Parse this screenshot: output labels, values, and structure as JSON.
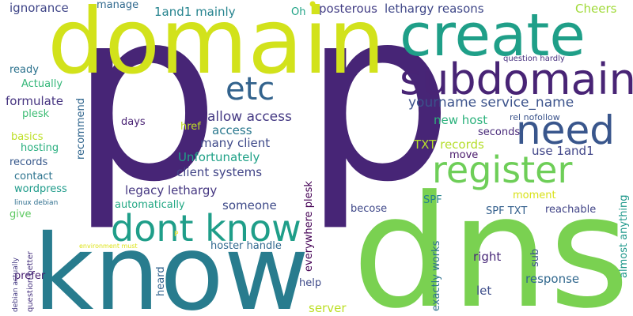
{
  "words": [
    {
      "key": "p1",
      "text": "p",
      "color": "#472576"
    },
    {
      "key": "p2",
      "text": "p",
      "color": "#472576"
    },
    {
      "key": "dns",
      "text": "dns",
      "color": "#7ad151"
    },
    {
      "key": "know",
      "text": "know",
      "color": "#287c8e"
    },
    {
      "key": "domain",
      "text": "domain",
      "color": "#d2e21b"
    },
    {
      "key": "create",
      "text": "create",
      "color": "#1f9f88"
    },
    {
      "key": "subdomain",
      "text": "subdomain",
      "color": "#482475"
    },
    {
      "key": "dont_know",
      "text": "dont know",
      "color": "#1f9e89"
    },
    {
      "key": "register",
      "text": "register",
      "color": "#6ece58"
    },
    {
      "key": "need",
      "text": "need",
      "color": "#39568c"
    },
    {
      "key": "etc",
      "text": "etc",
      "color": "#33638d"
    },
    {
      "key": "yourname",
      "text": "yourname service_name",
      "color": "#3b528b"
    },
    {
      "key": "allow_access",
      "text": "allow access",
      "color": "#443983"
    },
    {
      "key": "access",
      "text": "access",
      "color": "#2a788e"
    },
    {
      "key": "many_client",
      "text": "many client",
      "color": "#3e4989"
    },
    {
      "key": "unfortunately",
      "text": "Unfortunately",
      "color": "#1fa187"
    },
    {
      "key": "client_systems",
      "text": "client systems",
      "color": "#414487"
    },
    {
      "key": "legacy_lethargy",
      "text": "legacy lethargy",
      "color": "#453781"
    },
    {
      "key": "automatically",
      "text": "automatically",
      "color": "#22a884"
    },
    {
      "key": "someone",
      "text": "someone",
      "color": "#3e4a89"
    },
    {
      "key": "ignorance",
      "text": "ignorance",
      "color": "#404688"
    },
    {
      "key": "manage",
      "text": "manage",
      "color": "#30698e"
    },
    {
      "key": "1and1_mainly",
      "text": "1and1 mainly",
      "color": "#25838e"
    },
    {
      "key": "oh",
      "text": "Oh",
      "color": "#20a386"
    },
    {
      "key": "posterous",
      "text": "posterous",
      "color": "#433e85"
    },
    {
      "key": "lethargy_reasons",
      "text": "lethargy reasons",
      "color": "#3f4788"
    },
    {
      "key": "cheers",
      "text": "Cheers",
      "color": "#a0da39"
    },
    {
      "key": "question_hardly",
      "text": "question hardly",
      "color": "#46307e"
    },
    {
      "key": "ready",
      "text": "ready",
      "color": "#2c728e"
    },
    {
      "key": "actually",
      "text": "Actually",
      "color": "#35b779"
    },
    {
      "key": "formulate",
      "text": "formulate",
      "color": "#463480"
    },
    {
      "key": "recommend",
      "text": "recommend",
      "color": "#31668e"
    },
    {
      "key": "plesk",
      "text": "plesk",
      "color": "#3dbc74"
    },
    {
      "key": "days",
      "text": "days",
      "color": "#482173"
    },
    {
      "key": "href",
      "text": "href",
      "color": "#c2df23"
    },
    {
      "key": "new_host",
      "text": "new host",
      "color": "#2db27d"
    },
    {
      "key": "rel_nofollow",
      "text": "rel nofollow",
      "color": "#3a538b"
    },
    {
      "key": "seconds",
      "text": "seconds",
      "color": "#482979"
    },
    {
      "key": "txt_records",
      "text": "TXT records",
      "color": "#b5de2b"
    },
    {
      "key": "move",
      "text": "move",
      "color": "#48186a"
    },
    {
      "key": "use_1and1",
      "text": "use 1and1",
      "color": "#404588"
    },
    {
      "key": "basics",
      "text": "basics",
      "color": "#bddf26"
    },
    {
      "key": "hosting",
      "text": "hosting",
      "color": "#29af7f"
    },
    {
      "key": "records",
      "text": "records",
      "color": "#38598c"
    },
    {
      "key": "contact",
      "text": "contact",
      "color": "#2c738e"
    },
    {
      "key": "wordpress",
      "text": "wordpress",
      "color": "#1e9b8a"
    },
    {
      "key": "linux_debian",
      "text": "linux debian",
      "color": "#2e6e8e"
    },
    {
      "key": "give",
      "text": "give",
      "color": "#5ec962"
    },
    {
      "key": "moment",
      "text": "moment",
      "color": "#d8e219"
    },
    {
      "key": "spf",
      "text": "SPF",
      "color": "#25838e"
    },
    {
      "key": "spf_txt",
      "text": "SPF TXT",
      "color": "#34608d"
    },
    {
      "key": "reachable",
      "text": "reachable",
      "color": "#414487"
    },
    {
      "key": "becose",
      "text": "becose",
      "color": "#3f4889"
    },
    {
      "key": "everywhere_plesk",
      "text": "everywhere plesk",
      "color": "#440154"
    },
    {
      "key": "exactly_works",
      "text": "exactly works",
      "color": "#2c718e"
    },
    {
      "key": "environment_must",
      "text": "environment must",
      "color": "#dde318"
    },
    {
      "key": "p_small",
      "text": "P",
      "color": "#fde725"
    },
    {
      "key": "hoster_handle",
      "text": "hoster handle",
      "color": "#31688e"
    },
    {
      "key": "heard",
      "text": "heard",
      "color": "#33638d"
    },
    {
      "key": "help",
      "text": "help",
      "color": "#3e4a89"
    },
    {
      "key": "server",
      "text": "server",
      "color": "#bddf26"
    },
    {
      "key": "right",
      "text": "right",
      "color": "#482878"
    },
    {
      "key": "let",
      "text": "let",
      "color": "#3d4d8a"
    },
    {
      "key": "sub",
      "text": "sub",
      "color": "#3b528b"
    },
    {
      "key": "response",
      "text": "response",
      "color": "#31688e"
    },
    {
      "key": "almost_anything",
      "text": "almost anything",
      "color": "#1f988b"
    },
    {
      "key": "prefer",
      "text": "prefer",
      "color": "#481f70"
    },
    {
      "key": "question_better",
      "text": "question better",
      "color": "#46327e"
    },
    {
      "key": "debian_actually",
      "text": "debian actually",
      "color": "#443a83"
    },
    {
      "key": "dot",
      "text": "•",
      "color": "#d8e219"
    }
  ]
}
